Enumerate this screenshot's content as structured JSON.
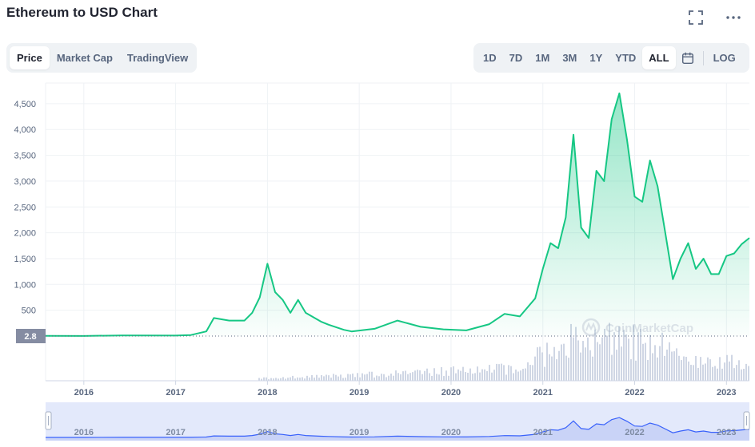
{
  "header": {
    "title": "Ethereum to USD Chart",
    "expand_icon": "expand-icon",
    "more_icon": "more-dots-icon"
  },
  "view_tabs": [
    {
      "label": "Price",
      "active": true
    },
    {
      "label": "Market Cap",
      "active": false
    },
    {
      "label": "TradingView",
      "active": false
    }
  ],
  "range_tabs": [
    {
      "label": "1D",
      "active": false
    },
    {
      "label": "7D",
      "active": false
    },
    {
      "label": "1M",
      "active": false
    },
    {
      "label": "3M",
      "active": false
    },
    {
      "label": "1Y",
      "active": false
    },
    {
      "label": "YTD",
      "active": false
    },
    {
      "label": "ALL",
      "active": true
    }
  ],
  "calendar_icon": "calendar-icon",
  "log_label": "LOG",
  "watermark": "CoinMarketCap",
  "colors": {
    "line": "#16c784",
    "area_top": "#16c784",
    "volume": "#cfd6e4",
    "navigator_fill": "#e3e9fb",
    "navigator_line": "#3861fb",
    "grid": "#eff2f5",
    "current_label_bg": "#858ca2"
  },
  "chart_data": {
    "type": "area",
    "series": [
      {
        "values_x": [
          "2015-08",
          "2016-01",
          "2016-06",
          "2017-01",
          "2017-03",
          "2017-05",
          "2017-06",
          "2017-08",
          "2017-09",
          "2017-10",
          "2017-11",
          "2017-12",
          "2018-01",
          "2018-02",
          "2018-03",
          "2018-04",
          "2018-05",
          "2018-06",
          "2018-08",
          "2018-09",
          "2018-11",
          "2018-12",
          "2019-03",
          "2019-06",
          "2019-09",
          "2019-12",
          "2020-03",
          "2020-06",
          "2020-08",
          "2020-10",
          "2020-12",
          "2021-01",
          "2021-02",
          "2021-03",
          "2021-04",
          "2021-05",
          "2021-06",
          "2021-07",
          "2021-08",
          "2021-09",
          "2021-10",
          "2021-11",
          "2021-12",
          "2022-01",
          "2022-02",
          "2022-03",
          "2022-04",
          "2022-05",
          "2022-06",
          "2022-07",
          "2022-08",
          "2022-09",
          "2022-10",
          "2022-11",
          "2022-12",
          "2023-01",
          "2023-02",
          "2023-03",
          "2023-04"
        ],
        "values_y": [
          2.8,
          1,
          12,
          10,
          20,
          90,
          350,
          300,
          300,
          300,
          450,
          750,
          1400,
          850,
          700,
          450,
          700,
          450,
          280,
          220,
          120,
          90,
          140,
          300,
          180,
          130,
          110,
          230,
          430,
          380,
          730,
          1300,
          1800,
          1700,
          2300,
          3900,
          2100,
          1900,
          3200,
          3000,
          4200,
          4700,
          3800,
          2700,
          2600,
          3400,
          2900,
          2000,
          1100,
          1500,
          1800,
          1300,
          1500,
          1200,
          1200,
          1550,
          1600,
          1780,
          1900
        ]
      }
    ],
    "current_value_label": "2.8",
    "y_ticks": [
      "500",
      "1,000",
      "1,500",
      "2,000",
      "2,500",
      "3,000",
      "3,500",
      "4,000",
      "4,500"
    ],
    "x_ticks": [
      "2016",
      "2017",
      "2018",
      "2019",
      "2020",
      "2021",
      "2022",
      "2023"
    ],
    "ylim": [
      0,
      4900
    ],
    "xlim": [
      "2015-08",
      "2023-04"
    ],
    "grid": true,
    "volume_bars": true,
    "navigator": true
  }
}
